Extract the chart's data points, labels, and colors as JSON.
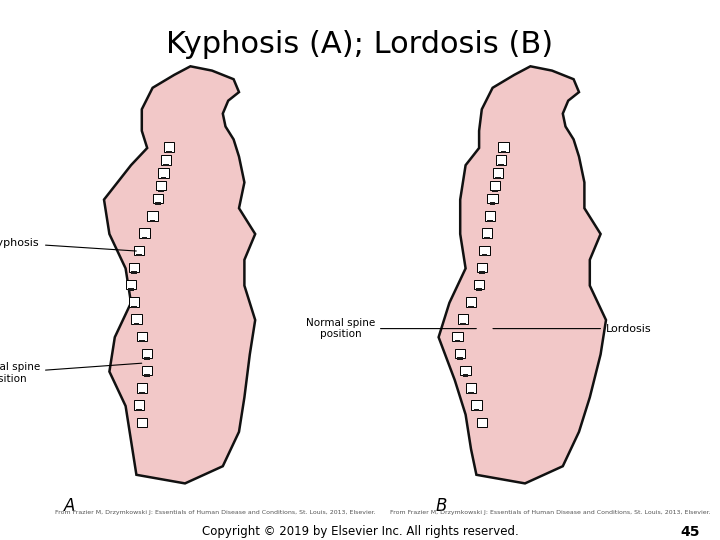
{
  "title": "Kyphosis (A); Lordosis (B)",
  "title_fontsize": 22,
  "bg_color": "#ffffff",
  "body_fill": "#f2c8c8",
  "body_edge": "#111111",
  "label_A": "A",
  "label_B": "B",
  "label_kyphosis": "Kyphosis",
  "label_normal_spine_A": "Normal spine\nposition",
  "label_normal_spine_B": "Normal spine\nposition",
  "label_lordosis": "Lordosis",
  "copyright": "Copyright © 2019 by Elsevier Inc. All rights reserved.",
  "page_num": "45",
  "citation_A": "From Frazier M, Drzymkowski J: Essentials of Human Disease and Conditions, St. Louis, 2013, Elsevier.",
  "citation_B": "From Frazier M, Drzymkowski J: Essentials of Human Disease and Conditions, St. Louis, 2013, Elsevier."
}
